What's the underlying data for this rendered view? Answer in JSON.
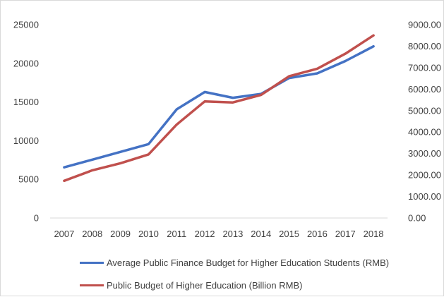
{
  "chart_data": {
    "type": "line",
    "title": "",
    "categories": [
      "2007",
      "2008",
      "2009",
      "2010",
      "2011",
      "2012",
      "2013",
      "2014",
      "2015",
      "2016",
      "2017",
      "2018"
    ],
    "series": [
      {
        "name": "Average Public Finance Budget for Higher Education Students (RMB)",
        "axis": "left",
        "color": "#4472c4",
        "values": [
          6550,
          7550,
          8550,
          9550,
          14050,
          16300,
          15550,
          16050,
          18100,
          18700,
          20300,
          22200
        ]
      },
      {
        "name": "Public Budget of Higher Education (Billion RMB)",
        "axis": "right",
        "color": "#c0504d",
        "values": [
          1730,
          2220,
          2550,
          2960,
          4350,
          5430,
          5380,
          5730,
          6600,
          6950,
          7650,
          8500
        ]
      }
    ],
    "yleft": {
      "ticks": [
        "0",
        "5000",
        "10000",
        "15000",
        "20000",
        "25000"
      ],
      "lim": [
        0,
        25000
      ]
    },
    "yright": {
      "ticks": [
        "0.00",
        "1000.00",
        "2000.00",
        "3000.00",
        "4000.00",
        "5000.00",
        "6000.00",
        "7000.00",
        "8000.00",
        "9000.00"
      ],
      "lim": [
        0,
        9000
      ]
    },
    "grid": false,
    "legend_position": "bottom"
  }
}
